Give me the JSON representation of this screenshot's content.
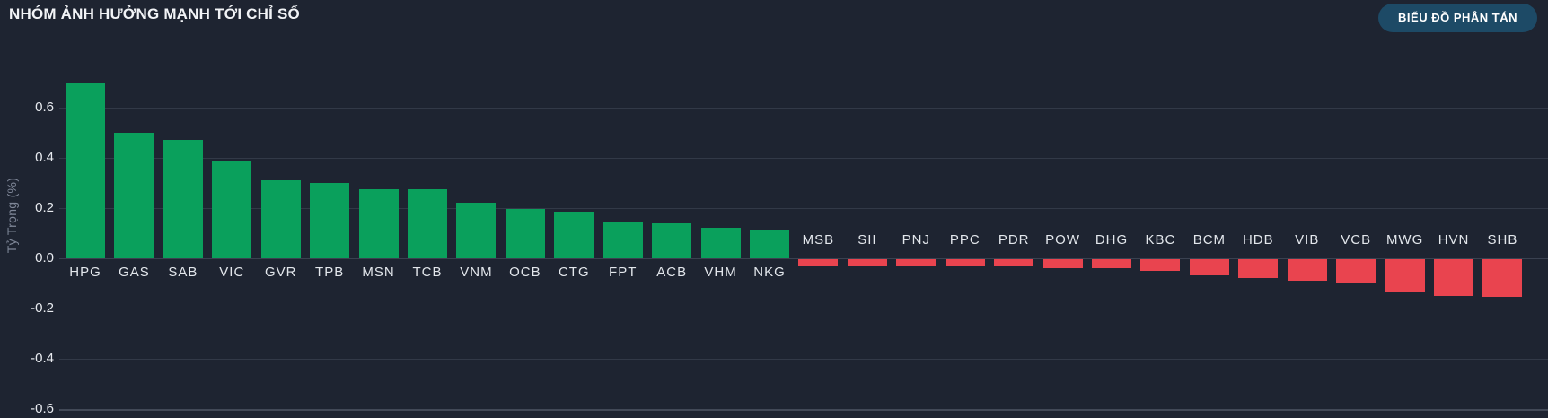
{
  "header": {
    "title": "NHÓM ẢNH HƯỞNG MẠNH TỚI CHỈ SỐ",
    "scatter_button_label": "BIỂU ĐỒ PHÂN TÁN"
  },
  "chart_data": {
    "type": "bar",
    "title": "NHÓM ẢNH HƯỞNG MẠNH TỚI CHỈ SỐ",
    "xlabel": "",
    "ylabel": "Tỷ Trọng (%)",
    "ylim": [
      -0.7,
      0.75
    ],
    "yticks": [
      0.6,
      0.4,
      0.2,
      0.0,
      -0.2,
      -0.4,
      -0.6
    ],
    "grid": true,
    "legend": false,
    "categories": [
      "HPG",
      "GAS",
      "SAB",
      "VIC",
      "GVR",
      "TPB",
      "MSN",
      "TCB",
      "VNM",
      "OCB",
      "CTG",
      "FPT",
      "ACB",
      "VHM",
      "NKG",
      "MSB",
      "SII",
      "PNJ",
      "PPC",
      "PDR",
      "POW",
      "DHG",
      "KBC",
      "BCM",
      "HDB",
      "VIB",
      "VCB",
      "MWG",
      "HVN",
      "SHB"
    ],
    "values": [
      0.7,
      0.5,
      0.47,
      0.39,
      0.31,
      0.3,
      0.275,
      0.275,
      0.22,
      0.195,
      0.185,
      0.145,
      0.14,
      0.12,
      0.115,
      -0.025,
      -0.025,
      -0.025,
      -0.03,
      -0.03,
      -0.035,
      -0.035,
      -0.045,
      -0.065,
      -0.075,
      -0.085,
      -0.095,
      -0.13,
      -0.145,
      -0.15
    ],
    "positive_color": "#0aa05c",
    "negative_color": "#e9444f",
    "background_color": "#1e2431"
  }
}
